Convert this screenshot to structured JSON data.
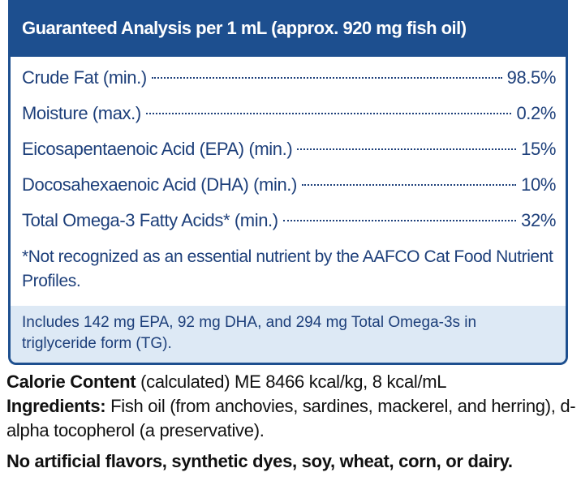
{
  "header": {
    "title": "Guaranteed Analysis per 1 mL (approx. 920 mg fish oil)"
  },
  "analysis": {
    "rows": [
      {
        "label": "Crude Fat (min.)",
        "value": "98.5%"
      },
      {
        "label": "Moisture (max.)",
        "value": "0.2%"
      },
      {
        "label": "Eicosapentaenoic Acid (EPA) (min.)",
        "value": "15%"
      },
      {
        "label": "Docosahexaenoic Acid (DHA) (min.)",
        "value": "10%"
      },
      {
        "label": "Total Omega-3 Fatty Acids* (min.)",
        "value": "32%"
      }
    ]
  },
  "footnote": "*Not recognized as an essential nutrient by the AAFCO Cat Food Nutrient Profiles.",
  "includes": "Includes 142 mg EPA, 92 mg DHA, and 294 mg Total Omega-3s in triglyceride form (TG).",
  "calorie": {
    "label": "Calorie Content",
    "text": "(calculated) ME 8466 kcal/kg, 8 kcal/mL"
  },
  "ingredients": {
    "label": "Ingredients:",
    "text": "Fish oil (from anchovies, sardines, mackerel, and herring), d-alpha tocopherol (a preservative)."
  },
  "claim": "No artificial flavors, synthetic dyes, soy, wheat, corn, or dairy."
}
